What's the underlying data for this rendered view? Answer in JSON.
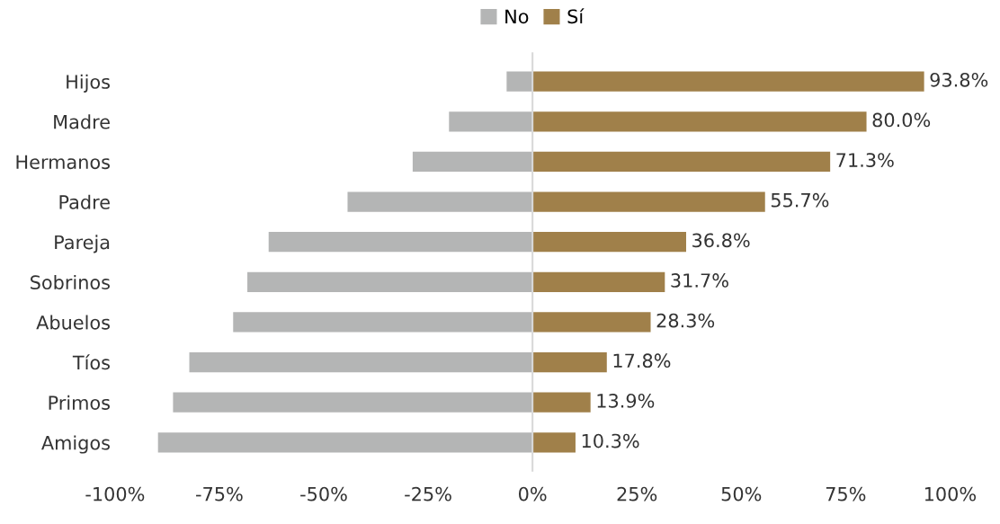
{
  "chart_data": {
    "type": "bar",
    "orientation": "horizontal",
    "categories": [
      "Hijos",
      "Madre",
      "Hermanos",
      "Padre",
      "Pareja",
      "Sobrinos",
      "Abuelos",
      "Tíos",
      "Primos",
      "Amigos"
    ],
    "series": [
      {
        "name": "No",
        "color": "#b4b5b5",
        "values": [
          -6.2,
          -20.0,
          -28.7,
          -44.3,
          -63.2,
          -68.3,
          -71.7,
          -82.2,
          -86.1,
          -89.7
        ]
      },
      {
        "name": "Sí",
        "color": "#a0804a",
        "values": [
          93.8,
          80.0,
          71.3,
          55.7,
          36.8,
          31.7,
          28.3,
          17.8,
          13.9,
          10.3
        ],
        "value_labels": [
          "93.8%",
          "80.0%",
          "71.3%",
          "55.7%",
          "36.8%",
          "31.7%",
          "28.3%",
          "17.8%",
          "13.9%",
          "10.3%"
        ]
      }
    ],
    "xlim": [
      -100,
      100
    ],
    "xticks": [
      {
        "value": -100,
        "label": "-100%"
      },
      {
        "value": -75,
        "label": "-75%"
      },
      {
        "value": -50,
        "label": "-50%"
      },
      {
        "value": -25,
        "label": "-25%"
      },
      {
        "value": 0,
        "label": "0%"
      },
      {
        "value": 25,
        "label": "25%"
      },
      {
        "value": 50,
        "label": "50%"
      },
      {
        "value": 75,
        "label": "75%"
      },
      {
        "value": 100,
        "label": "100%"
      }
    ],
    "ref_lines": [
      {
        "axis": "x",
        "value": 0,
        "color": "#d9d9d9"
      }
    ],
    "grid": false,
    "legend": "top",
    "stacked": true
  }
}
